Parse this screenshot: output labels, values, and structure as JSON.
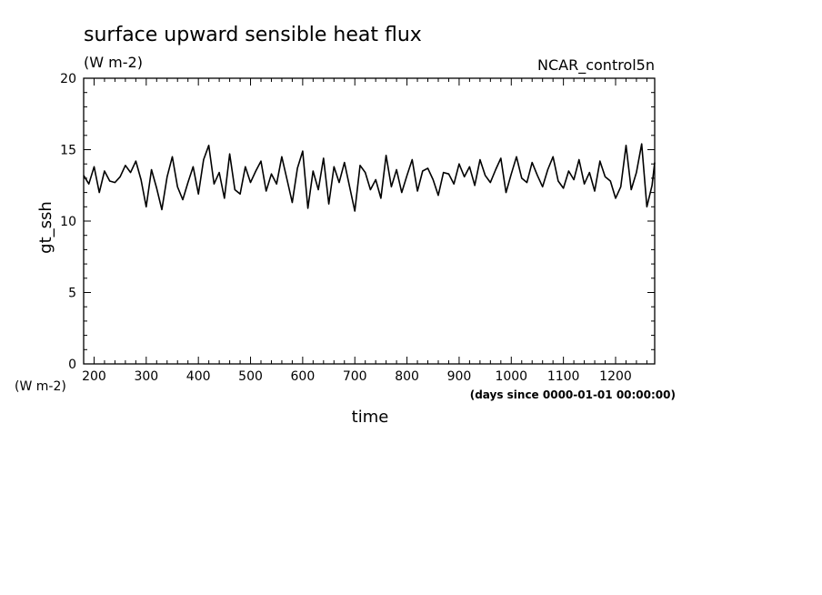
{
  "chart_data": {
    "type": "line",
    "title": "surface upward sensible heat flux",
    "units": "(W m-2)",
    "dataset": "NCAR_control5n",
    "xlabel": "time",
    "x_units": "(days since 0000-01-01 00:00:00)",
    "ylabel": "gt_ssh",
    "y_units": "(W m-2)",
    "xlim": [
      180,
      1275
    ],
    "ylim": [
      0,
      20
    ],
    "x_ticks": [
      200,
      300,
      400,
      500,
      600,
      700,
      800,
      900,
      1000,
      1100,
      1200
    ],
    "y_ticks": [
      0,
      5,
      10,
      15,
      20
    ],
    "grid": false,
    "series": [
      {
        "color": "#000000",
        "x": [
          180,
          190,
          200,
          210,
          220,
          230,
          240,
          250,
          260,
          270,
          280,
          290,
          300,
          310,
          320,
          330,
          340,
          350,
          360,
          370,
          380,
          390,
          400,
          410,
          420,
          430,
          440,
          450,
          460,
          470,
          480,
          490,
          500,
          510,
          520,
          530,
          540,
          550,
          560,
          570,
          580,
          590,
          600,
          610,
          620,
          630,
          640,
          650,
          660,
          670,
          680,
          690,
          700,
          710,
          720,
          730,
          740,
          750,
          760,
          770,
          780,
          790,
          800,
          810,
          820,
          830,
          840,
          850,
          860,
          870,
          880,
          890,
          900,
          910,
          920,
          930,
          940,
          950,
          960,
          970,
          980,
          990,
          1000,
          1010,
          1020,
          1030,
          1040,
          1050,
          1060,
          1070,
          1080,
          1090,
          1100,
          1110,
          1120,
          1130,
          1140,
          1150,
          1160,
          1170,
          1180,
          1190,
          1200,
          1210,
          1220,
          1230,
          1240,
          1250,
          1260,
          1270,
          1275
        ],
        "y": [
          13.2,
          12.6,
          13.8,
          12.0,
          13.5,
          12.8,
          12.7,
          13.1,
          13.9,
          13.4,
          14.2,
          12.9,
          11.0,
          13.6,
          12.3,
          10.8,
          13.1,
          14.5,
          12.4,
          11.5,
          12.7,
          13.8,
          11.9,
          14.3,
          15.3,
          12.6,
          13.4,
          11.6,
          14.7,
          12.2,
          11.9,
          13.8,
          12.7,
          13.5,
          14.2,
          12.1,
          13.3,
          12.6,
          14.5,
          12.9,
          11.3,
          13.7,
          14.9,
          10.9,
          13.5,
          12.2,
          14.4,
          11.2,
          13.8,
          12.7,
          14.1,
          12.4,
          10.7,
          13.9,
          13.4,
          12.2,
          12.9,
          11.6,
          14.6,
          12.4,
          13.6,
          12.0,
          13.2,
          14.3,
          12.1,
          13.5,
          13.7,
          12.9,
          11.8,
          13.4,
          13.3,
          12.6,
          14.0,
          13.1,
          13.8,
          12.5,
          14.3,
          13.2,
          12.7,
          13.6,
          14.4,
          12.0,
          13.3,
          14.5,
          13.0,
          12.7,
          14.1,
          13.2,
          12.4,
          13.6,
          14.5,
          12.8,
          12.3,
          13.5,
          12.9,
          14.3,
          12.6,
          13.4,
          12.1,
          14.2,
          13.1,
          12.8,
          11.6,
          12.4,
          15.3,
          12.2,
          13.4,
          15.4,
          11.0,
          12.5,
          14.1
        ]
      }
    ]
  }
}
